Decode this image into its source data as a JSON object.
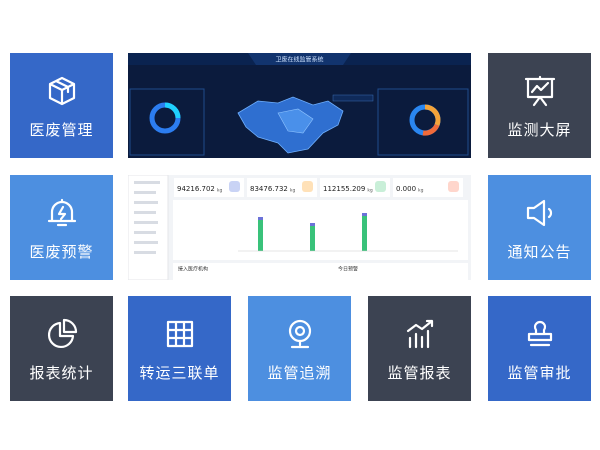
{
  "tiles": [
    {
      "label": "医废管理"
    },
    {
      "label": "监测大屏"
    },
    {
      "label": "医废预警"
    },
    {
      "label": "通知公告"
    },
    {
      "label": "报表统计"
    },
    {
      "label": "转运三联单"
    },
    {
      "label": "监管追溯"
    },
    {
      "label": "监管报表"
    },
    {
      "label": "监管审批"
    }
  ],
  "screenshots": {
    "dashboard": {
      "title": "卫废在线监管系统"
    },
    "console": {
      "stats": [
        {
          "value": "94216.702",
          "unit": "kg"
        },
        {
          "value": "83476.732",
          "unit": "kg"
        },
        {
          "value": "112155.209",
          "unit": "kg"
        },
        {
          "value": "0.000",
          "unit": "kg"
        }
      ],
      "institutions": "接入医疗机构",
      "alerts": "今日预警"
    }
  }
}
